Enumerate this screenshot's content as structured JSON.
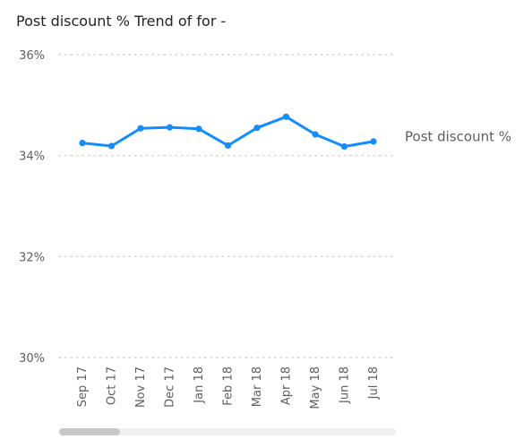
{
  "title": "Post discount % Trend of for -",
  "chart_data": {
    "type": "line",
    "title": "Post discount % Trend of for -",
    "categories": [
      "Sep 17",
      "Oct 17",
      "Nov 17",
      "Dec 17",
      "Jan 18",
      "Feb 18",
      "Mar 18",
      "Apr 18",
      "May 18",
      "Jun 18",
      "Jul 18"
    ],
    "series": [
      {
        "name": "Post discount %",
        "values": [
          34.25,
          34.19,
          34.54,
          34.56,
          34.53,
          34.2,
          34.55,
          34.77,
          34.42,
          34.18,
          34.28
        ],
        "color": "#118DFF"
      }
    ],
    "yticks": [
      "30%",
      "32%",
      "34%",
      "36%"
    ],
    "yticks_values": [
      30,
      32,
      34,
      36
    ],
    "ylim": [
      30,
      36
    ],
    "grid": true,
    "legend": "right-end-label"
  },
  "colors": {
    "line": "#118DFF",
    "grid": "#c8c8c8",
    "tick_text": "#605e5c",
    "title_text": "#252423"
  }
}
